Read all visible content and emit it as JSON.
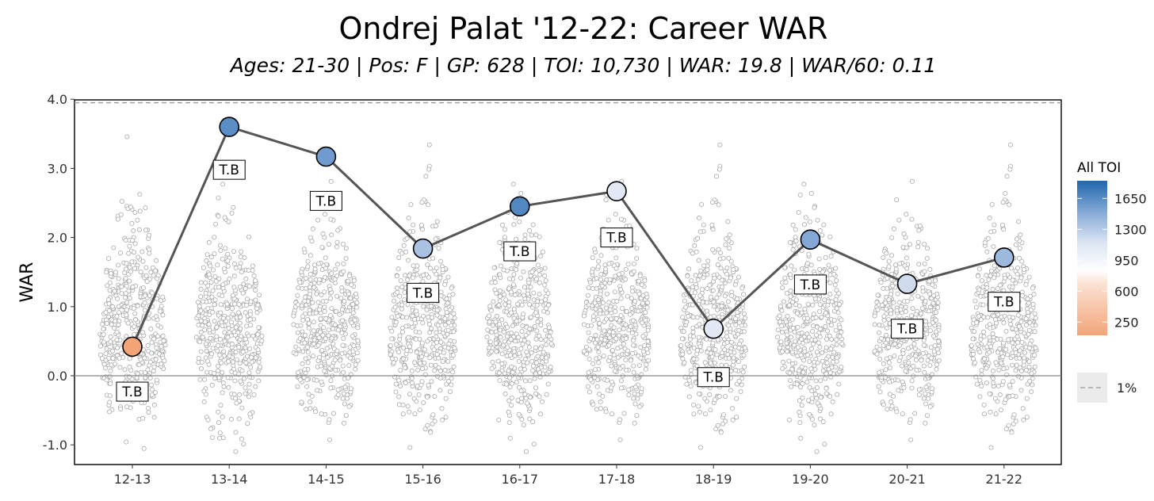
{
  "chart_data": {
    "type": "scatter",
    "title": "Ondrej Palat '12-22: Career WAR",
    "subtitle": "Ages: 21-30 | Pos: F | GP: 628 | TOI: 10,730 | WAR: 19.8 | WAR/60: 0.11",
    "ylabel": "WAR",
    "xlabel": "",
    "ylim": [
      -1.28,
      4.03
    ],
    "yticks": [
      "-1.0",
      "0.0",
      "1.0",
      "2.0",
      "3.0",
      "4.0"
    ],
    "categories": [
      "12-13",
      "13-14",
      "14-15",
      "15-16",
      "16-17",
      "17-18",
      "18-19",
      "19-20",
      "20-21",
      "21-22"
    ],
    "reference_line": {
      "value": 3.95,
      "label": "1%",
      "style": "dashed"
    },
    "zero_line": 0,
    "series": [
      {
        "values": [
          0.42,
          3.6,
          3.17,
          1.84,
          2.45,
          2.67,
          0.68,
          1.97,
          1.33,
          1.71
        ],
        "team_labels": [
          "T.B",
          "T.B",
          "T.B",
          "T.B",
          "T.B",
          "T.B",
          "T.B",
          "T.B",
          "T.B",
          "T.B"
        ],
        "team_label_values": [
          -0.23,
          2.98,
          2.53,
          1.2,
          1.8,
          2.0,
          -0.02,
          1.32,
          0.68,
          1.07
        ],
        "toi": [
          150,
          1500,
          1400,
          1150,
          1550,
          900,
          900,
          1300,
          1000,
          1200
        ]
      }
    ],
    "distribution": {
      "description": "league-wide WAR distribution per season",
      "points_per_season": 440
    },
    "legend": {
      "title": "All TOI",
      "placement": "right",
      "colorbar_ticks": [
        "1650",
        "1300",
        "950",
        "600",
        "250"
      ],
      "color_low": "#f3a477",
      "color_mid": "#ffffff",
      "color_high": "#1f67ad"
    }
  }
}
